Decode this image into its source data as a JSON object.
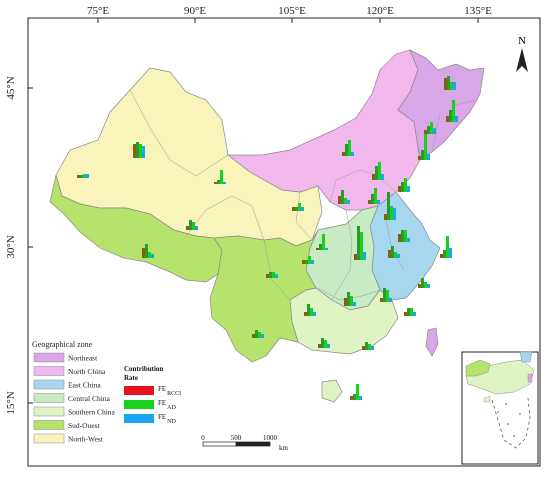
{
  "map": {
    "lat_labels": [
      "45°N",
      "30°N",
      "15°N"
    ],
    "lon_labels": [
      "75°E",
      "90°E",
      "105°E",
      "120°E",
      "135°E"
    ],
    "north_label": "N",
    "legend": {
      "title": "Geographical zone",
      "zones": [
        {
          "name": "Northeast",
          "color": "#d9a6e8"
        },
        {
          "name": "North China",
          "color": "#f2b8ee"
        },
        {
          "name": "East China",
          "color": "#a7d6ef"
        },
        {
          "name": "Central China",
          "color": "#c7ecc4"
        },
        {
          "name": "Southern China",
          "color": "#dff3c3"
        },
        {
          "name": "Sud-Ouest",
          "color": "#b5e36b"
        },
        {
          "name": "North-West",
          "color": "#f9f3bc"
        }
      ]
    },
    "contribution": {
      "title_line1": "Contribution",
      "title_line2": "Rate",
      "items": [
        {
          "prefix": "FE",
          "sub": "RCCI",
          "color": "#e8141c"
        },
        {
          "prefix": "FE",
          "sub": "AD",
          "color": "#16d21d"
        },
        {
          "prefix": "FE",
          "sub": "ND",
          "color": "#19a6f0"
        }
      ]
    },
    "scale": {
      "ticks": [
        "0",
        "500",
        "1000"
      ],
      "unit": "km"
    }
  }
}
